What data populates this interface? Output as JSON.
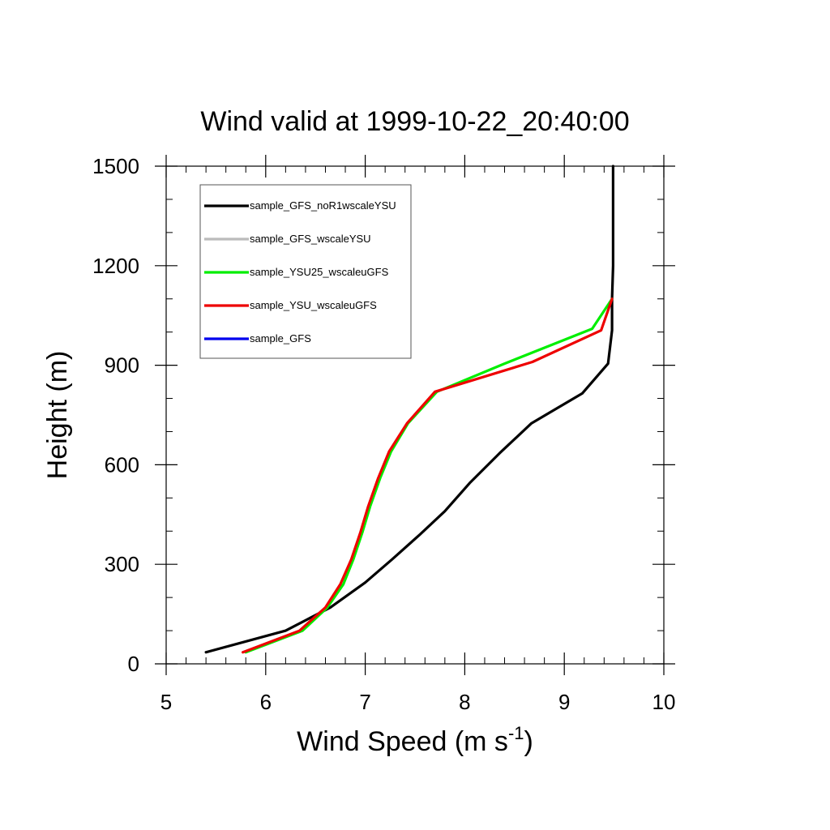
{
  "chart_data": {
    "type": "line",
    "title": "Wind valid at 1999-10-22_20:40:00",
    "xlabel": "Wind Speed (m s",
    "xlabel_sup": "-1",
    "xlabel_end": ")",
    "ylabel": "Height (m)",
    "xlim": [
      5,
      10
    ],
    "ylim": [
      0,
      1500
    ],
    "x_ticks": [
      "5",
      "6",
      "7",
      "8",
      "9",
      "10"
    ],
    "y_ticks": [
      "0",
      "300",
      "600",
      "900",
      "1200",
      "1500"
    ],
    "x_major": [
      5,
      6,
      7,
      8,
      9,
      10
    ],
    "y_major": [
      0,
      300,
      600,
      900,
      1200,
      1500
    ],
    "x_minor_step": 0.2,
    "y_minor_step": 100,
    "grid": false,
    "legend_position": "top-left",
    "series": [
      {
        "name": "sample_GFS_noR1wscaleYSU",
        "color": "#000000",
        "points": [
          [
            5.4,
            35
          ],
          [
            6.2,
            100
          ],
          [
            6.65,
            170
          ],
          [
            7.0,
            245
          ],
          [
            7.27,
            315
          ],
          [
            7.55,
            390
          ],
          [
            7.8,
            460
          ],
          [
            8.05,
            545
          ],
          [
            8.35,
            635
          ],
          [
            8.67,
            725
          ],
          [
            9.18,
            815
          ],
          [
            9.44,
            905
          ],
          [
            9.48,
            1005
          ],
          [
            9.48,
            1100
          ],
          [
            9.49,
            1200
          ],
          [
            9.49,
            1300
          ],
          [
            9.49,
            1400
          ],
          [
            9.49,
            1500
          ]
        ]
      },
      {
        "name": "sample_GFS_wscaleYSU",
        "color": "#bbbbbb",
        "points": []
      },
      {
        "name": "sample_YSU25_wscaleuGFS",
        "color": "#00ee00",
        "points": [
          [
            5.8,
            35
          ],
          [
            6.37,
            100
          ],
          [
            6.62,
            170
          ],
          [
            6.78,
            240
          ],
          [
            6.88,
            315
          ],
          [
            6.97,
            395
          ],
          [
            7.05,
            475
          ],
          [
            7.15,
            560
          ],
          [
            7.26,
            640
          ],
          [
            7.43,
            725
          ],
          [
            7.72,
            820
          ],
          [
            8.4,
            905
          ],
          [
            9.28,
            1010
          ],
          [
            9.48,
            1100
          ]
        ]
      },
      {
        "name": "sample_YSU_wscaleuGFS",
        "color": "#ee0000",
        "points": [
          [
            5.77,
            35
          ],
          [
            6.34,
            100
          ],
          [
            6.6,
            170
          ],
          [
            6.75,
            240
          ],
          [
            6.86,
            315
          ],
          [
            6.95,
            395
          ],
          [
            7.03,
            475
          ],
          [
            7.13,
            560
          ],
          [
            7.24,
            640
          ],
          [
            7.42,
            725
          ],
          [
            7.7,
            820
          ],
          [
            8.68,
            910
          ],
          [
            9.37,
            1005
          ],
          [
            9.48,
            1100
          ]
        ]
      },
      {
        "name": "sample_GFS",
        "color": "#0000ee",
        "points": []
      }
    ]
  }
}
